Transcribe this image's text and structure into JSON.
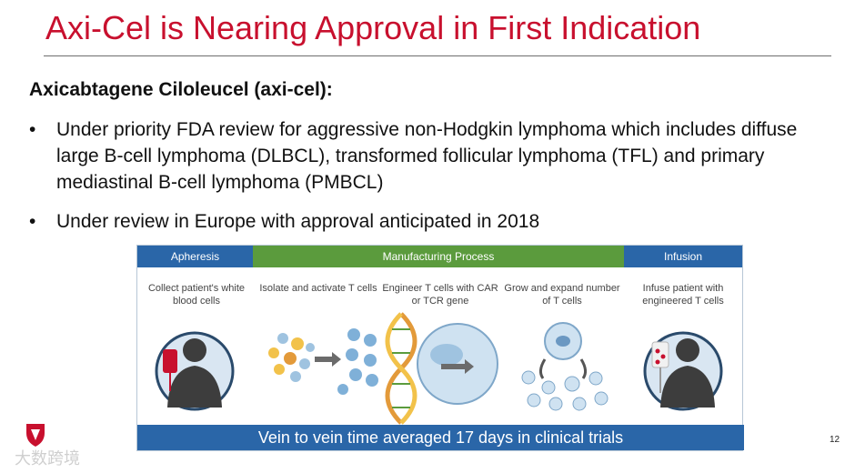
{
  "slide": {
    "title": "Axi-Cel is Nearing Approval in First Indication",
    "subtitle": "Axicabtagene Ciloleucel (axi-cel):",
    "bullets": [
      "Under priority FDA review for aggressive non-Hodgkin lymphoma which includes diffuse large B-cell lymphoma (DLBCL), transformed follicular lymphoma (TFL) and primary mediastinal B-cell lymphoma (PMBCL)",
      "Under review in Europe with approval anticipated in 2018"
    ],
    "bullet_glyph": "•",
    "page_number": "12",
    "watermark": "大数跨境"
  },
  "figure": {
    "headers": {
      "apheresis": "Apheresis",
      "manufacturing": "Manufacturing Process",
      "infusion": "Infusion"
    },
    "steps": [
      "Collect patient's white blood cells",
      "Isolate and activate T cells",
      "Engineer T cells with CAR or TCR gene",
      "Grow and expand number of T cells",
      "Infuse patient with engineered T cells"
    ],
    "footer": "Vein to vein time averaged 17 days in clinical trials",
    "colors": {
      "blue_header": "#2a66a8",
      "green_header": "#5b9b3d",
      "title_red": "#c8102e"
    }
  }
}
